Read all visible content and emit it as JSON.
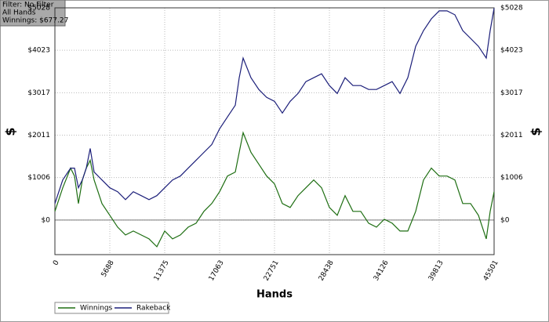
{
  "chart_data": {
    "type": "line",
    "info": [
      "Filter: No Filter",
      "All Hands",
      "Winnings: $677.27"
    ],
    "xlabel": "Hands",
    "ylabel": "$",
    "x": [
      0,
      813,
      1625,
      2031,
      2438,
      2844,
      3250,
      3656,
      4063,
      4875,
      5688,
      6500,
      7313,
      8125,
      8938,
      9750,
      10563,
      11375,
      12188,
      13000,
      13813,
      14625,
      15438,
      16250,
      17063,
      17875,
      18688,
      19094,
      19500,
      20313,
      21125,
      21938,
      22750,
      23563,
      24375,
      25188,
      26000,
      26813,
      27625,
      28438,
      29250,
      30063,
      30875,
      31688,
      32500,
      33313,
      34125,
      34938,
      35750,
      36563,
      37375,
      38188,
      39000,
      39813,
      40625,
      41438,
      42250,
      43063,
      43875,
      44688,
      45094,
      45501
    ],
    "series": [
      {
        "name": "Winnings",
        "color": "#1e6e12",
        "values": [
          205,
          764,
          1230,
          1043,
          391,
          950,
          1230,
          1416,
          950,
          391,
          112,
          -168,
          -354,
          -261,
          -354,
          -447,
          -633,
          -261,
          -447,
          -354,
          -168,
          -75,
          205,
          391,
          671,
          1043,
          1136,
          1602,
          2068,
          1602,
          1323,
          1043,
          857,
          391,
          298,
          578,
          764,
          950,
          764,
          298,
          112,
          578,
          205,
          205,
          -75,
          -168,
          19,
          -75,
          -261,
          -261,
          205,
          950,
          1230,
          1043,
          1043,
          950,
          391,
          391,
          112,
          -447,
          205,
          671
        ]
      },
      {
        "name": "Rakeback",
        "color": "#1c1f7a",
        "values": [
          391,
          950,
          1230,
          1230,
          764,
          950,
          1230,
          1695,
          1136,
          950,
          764,
          671,
          484,
          671,
          578,
          484,
          578,
          764,
          950,
          1043,
          1230,
          1416,
          1602,
          1788,
          2161,
          2441,
          2720,
          3372,
          3838,
          3372,
          3093,
          2906,
          2813,
          2534,
          2813,
          2999,
          3279,
          3372,
          3465,
          3186,
          2999,
          3372,
          3186,
          3186,
          3093,
          3093,
          3186,
          3279,
          2999,
          3372,
          4117,
          4490,
          4769,
          4956,
          4956,
          4862,
          4490,
          4304,
          4117,
          3838,
          4490,
          5020
        ]
      }
    ],
    "xlim": [
      0,
      45501
    ],
    "xticks": [
      0,
      5688,
      11375,
      17063,
      22751,
      28438,
      34126,
      39813,
      45501
    ],
    "ylim": [
      -820,
      5028
    ],
    "yticks": [
      {
        "value": 0,
        "label": "$0"
      },
      {
        "value": 1006,
        "label": "$1006"
      },
      {
        "value": 2011,
        "label": "$2011"
      },
      {
        "value": 3017,
        "label": "$3017"
      },
      {
        "value": 4023,
        "label": "$4023"
      },
      {
        "value": 5028,
        "label": "$5028"
      }
    ],
    "grid": true,
    "legend": "bottom-left"
  }
}
